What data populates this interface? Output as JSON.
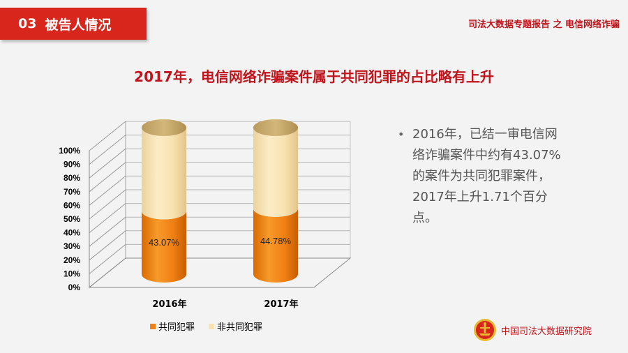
{
  "header": {
    "section_number": "03",
    "section_title": "被告人情况",
    "report_title": "司法大数据专题报告 之 电信网络诈骗"
  },
  "slide_title": "2017年，电信网络诈骗案件属于共同犯罪的占比略有上升",
  "bullet_text": "2016年，已结一审电信网络诈骗案件中约有43.07%的案件为共同犯罪案件，2017年上升1.71个百分点。",
  "footer": {
    "org_name": "中国司法大数据研究院"
  },
  "colors": {
    "joint": "#f08014",
    "non_joint": "#f8e2b0",
    "accent": "#c0141b",
    "tag_bg": "#d9261c"
  },
  "chart_data": {
    "type": "bar",
    "stacked": true,
    "percent": true,
    "categories": [
      "2016年",
      "2017年"
    ],
    "series": [
      {
        "name": "共同犯罪",
        "values": [
          43.07,
          44.78
        ]
      },
      {
        "name": "非共同犯罪",
        "values": [
          56.93,
          55.22
        ]
      }
    ],
    "data_labels": [
      "43.07%",
      "44.78%"
    ],
    "yticks": [
      "0%",
      "10%",
      "20%",
      "30%",
      "40%",
      "50%",
      "60%",
      "70%",
      "80%",
      "90%",
      "100%"
    ],
    "ylim": [
      0,
      100
    ],
    "legend_position": "bottom",
    "grid": true
  }
}
